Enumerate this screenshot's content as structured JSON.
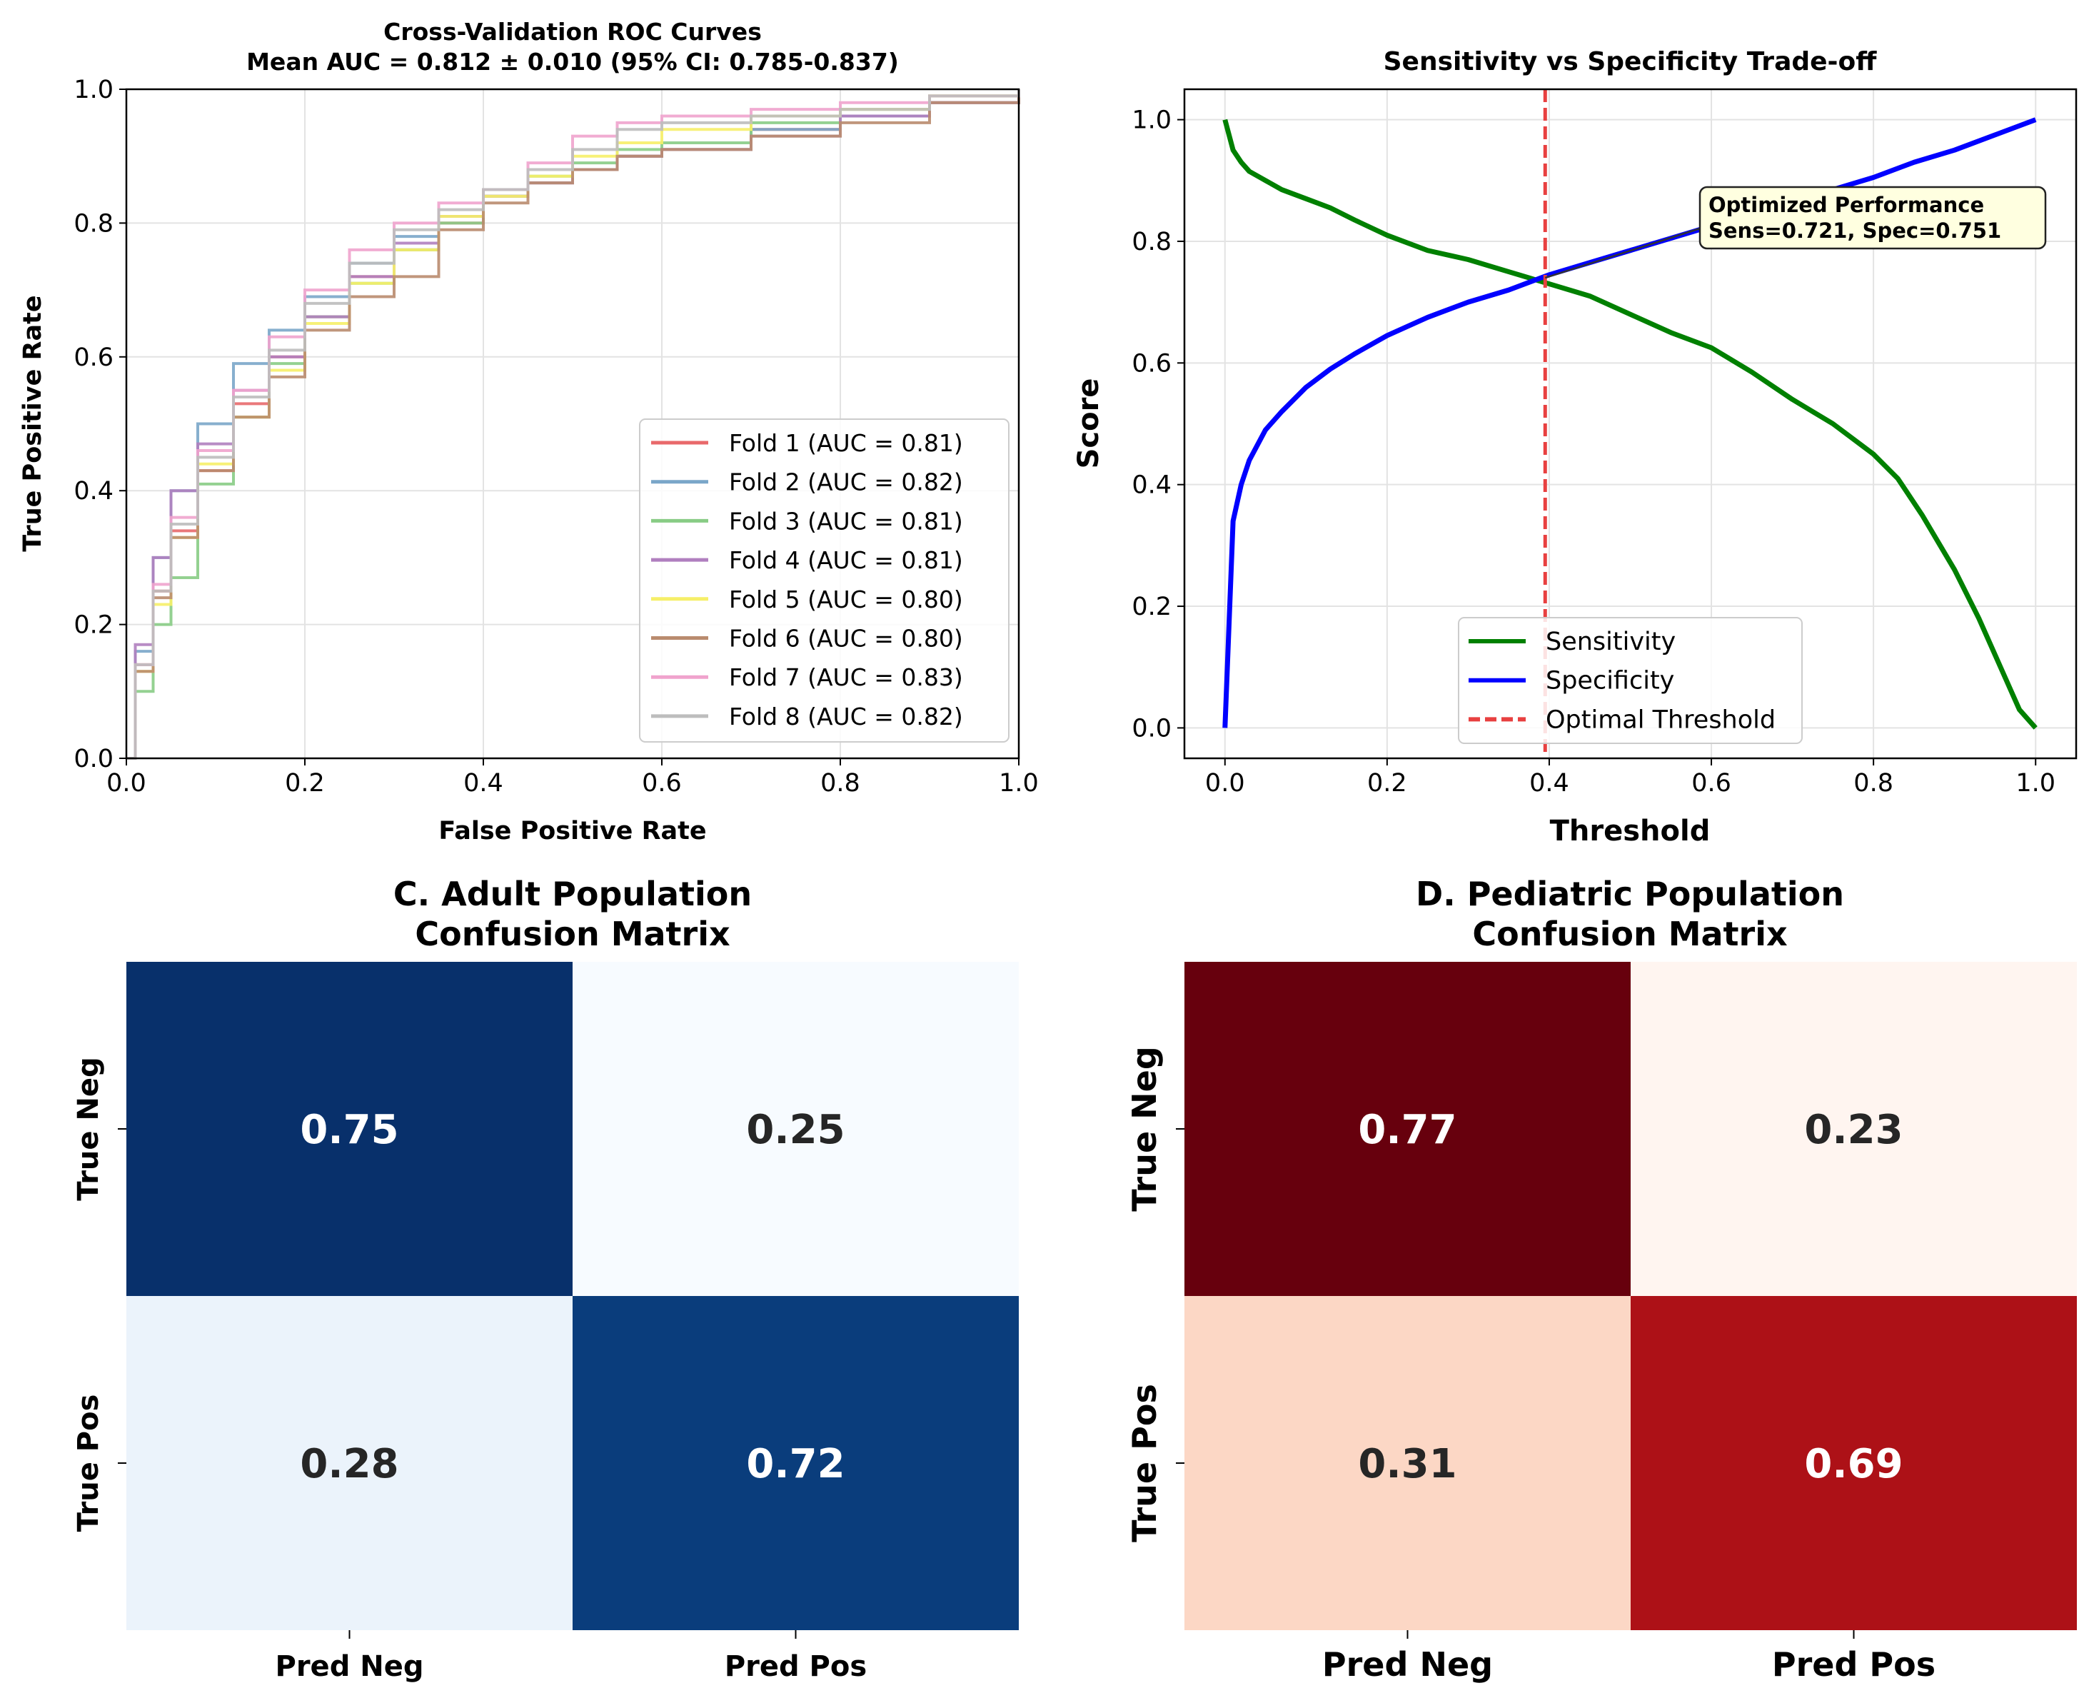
{
  "chart_data": [
    {
      "type": "line",
      "panel": "roc",
      "title_line1": "Cross-Validation ROC Curves",
      "title_line2": "Mean AUC = 0.812 ± 0.010 (95% CI: 0.785-0.837)",
      "xlabel": "False Positive Rate",
      "ylabel": "True Positive Rate",
      "xlim": [
        0,
        1
      ],
      "ylim": [
        0,
        1
      ],
      "xticks": [
        "0.0",
        "0.2",
        "0.4",
        "0.6",
        "0.8",
        "1.0"
      ],
      "yticks": [
        "0.0",
        "0.2",
        "0.4",
        "0.6",
        "0.8",
        "1.0"
      ],
      "grid": true,
      "legend_position": "lower-right",
      "series": [
        {
          "name": "Fold 1 (AUC = 0.81)",
          "color": "#e8696b",
          "x": [
            0,
            0.01,
            0.03,
            0.05,
            0.08,
            0.12,
            0.16,
            0.2,
            0.25,
            0.3,
            0.35,
            0.4,
            0.45,
            0.5,
            0.55,
            0.6,
            0.7,
            0.8,
            0.9,
            1.0
          ],
          "y": [
            0,
            0.14,
            0.25,
            0.34,
            0.43,
            0.53,
            0.6,
            0.66,
            0.72,
            0.76,
            0.8,
            0.84,
            0.86,
            0.88,
            0.9,
            0.91,
            0.94,
            0.96,
            0.98,
            1.0
          ]
        },
        {
          "name": "Fold 2 (AUC = 0.82)",
          "color": "#7aa6c9",
          "x": [
            0,
            0.01,
            0.03,
            0.05,
            0.08,
            0.12,
            0.16,
            0.2,
            0.25,
            0.3,
            0.35,
            0.4,
            0.45,
            0.5,
            0.55,
            0.6,
            0.7,
            0.8,
            0.9,
            1.0
          ],
          "y": [
            0,
            0.16,
            0.3,
            0.4,
            0.5,
            0.59,
            0.64,
            0.69,
            0.74,
            0.78,
            0.81,
            0.84,
            0.86,
            0.88,
            0.9,
            0.91,
            0.94,
            0.96,
            0.98,
            1.0
          ]
        },
        {
          "name": "Fold 3 (AUC = 0.81)",
          "color": "#88cc85",
          "x": [
            0,
            0.01,
            0.03,
            0.05,
            0.08,
            0.12,
            0.16,
            0.2,
            0.25,
            0.3,
            0.35,
            0.4,
            0.45,
            0.5,
            0.55,
            0.6,
            0.7,
            0.8,
            0.9,
            1.0
          ],
          "y": [
            0,
            0.1,
            0.2,
            0.27,
            0.41,
            0.51,
            0.59,
            0.66,
            0.71,
            0.76,
            0.8,
            0.84,
            0.87,
            0.89,
            0.91,
            0.92,
            0.95,
            0.97,
            0.99,
            1.0
          ]
        },
        {
          "name": "Fold 4 (AUC = 0.81)",
          "color": "#b07fbf",
          "x": [
            0,
            0.01,
            0.03,
            0.05,
            0.08,
            0.12,
            0.16,
            0.2,
            0.25,
            0.3,
            0.35,
            0.4,
            0.45,
            0.5,
            0.55,
            0.6,
            0.7,
            0.8,
            0.9,
            1.0
          ],
          "y": [
            0,
            0.17,
            0.3,
            0.4,
            0.47,
            0.55,
            0.6,
            0.66,
            0.72,
            0.77,
            0.81,
            0.84,
            0.86,
            0.88,
            0.9,
            0.91,
            0.93,
            0.96,
            0.98,
            1.0
          ]
        },
        {
          "name": "Fold 5 (AUC = 0.80)",
          "color": "#f6ef68",
          "x": [
            0,
            0.01,
            0.03,
            0.05,
            0.08,
            0.12,
            0.16,
            0.2,
            0.25,
            0.3,
            0.35,
            0.4,
            0.45,
            0.5,
            0.55,
            0.6,
            0.7,
            0.8,
            0.9,
            1.0
          ],
          "y": [
            0,
            0.13,
            0.23,
            0.33,
            0.44,
            0.51,
            0.58,
            0.65,
            0.71,
            0.76,
            0.81,
            0.84,
            0.87,
            0.9,
            0.92,
            0.94,
            0.96,
            0.97,
            0.99,
            1.0
          ]
        },
        {
          "name": "Fold 6 (AUC = 0.80)",
          "color": "#b98b6e",
          "x": [
            0,
            0.01,
            0.03,
            0.05,
            0.08,
            0.12,
            0.16,
            0.2,
            0.25,
            0.3,
            0.35,
            0.4,
            0.45,
            0.5,
            0.55,
            0.6,
            0.7,
            0.8,
            0.9,
            1.0
          ],
          "y": [
            0,
            0.13,
            0.24,
            0.33,
            0.43,
            0.51,
            0.57,
            0.64,
            0.69,
            0.72,
            0.79,
            0.83,
            0.86,
            0.88,
            0.9,
            0.91,
            0.93,
            0.95,
            0.98,
            1.0
          ]
        },
        {
          "name": "Fold 7 (AUC = 0.83)",
          "color": "#f0a3cd",
          "x": [
            0,
            0.01,
            0.03,
            0.05,
            0.08,
            0.12,
            0.16,
            0.2,
            0.25,
            0.3,
            0.35,
            0.4,
            0.45,
            0.5,
            0.55,
            0.6,
            0.7,
            0.8,
            0.9,
            1.0
          ],
          "y": [
            0,
            0.14,
            0.26,
            0.36,
            0.46,
            0.55,
            0.63,
            0.7,
            0.76,
            0.8,
            0.83,
            0.85,
            0.89,
            0.93,
            0.95,
            0.96,
            0.97,
            0.98,
            0.99,
            1.0
          ]
        },
        {
          "name": "Fold 8 (AUC = 0.82)",
          "color": "#bdbdbd",
          "x": [
            0,
            0.01,
            0.03,
            0.05,
            0.08,
            0.12,
            0.16,
            0.2,
            0.25,
            0.3,
            0.35,
            0.4,
            0.45,
            0.5,
            0.55,
            0.6,
            0.7,
            0.8,
            0.9,
            1.0
          ],
          "y": [
            0,
            0.14,
            0.25,
            0.35,
            0.45,
            0.54,
            0.61,
            0.68,
            0.74,
            0.79,
            0.82,
            0.85,
            0.88,
            0.91,
            0.94,
            0.95,
            0.96,
            0.97,
            0.99,
            1.0
          ]
        }
      ]
    },
    {
      "type": "line",
      "panel": "tradeoff",
      "title": "Sensitivity vs Specificity Trade-off",
      "xlabel": "Threshold",
      "ylabel": "Score",
      "xlim": [
        -0.05,
        1.05
      ],
      "ylim": [
        -0.05,
        1.05
      ],
      "xticks": [
        "0.0",
        "0.2",
        "0.4",
        "0.6",
        "0.8",
        "1.0"
      ],
      "yticks": [
        "0.0",
        "0.2",
        "0.4",
        "0.6",
        "0.8",
        "1.0"
      ],
      "grid": true,
      "legend_position": "lower-center",
      "optimal_threshold": 0.395,
      "annotation": {
        "line1": "Optimized Performance",
        "line2": "Sens=0.721, Spec=0.751",
        "point": [
          0.395,
          0.74
        ]
      },
      "series": [
        {
          "name": "Sensitivity",
          "color": "#008000",
          "x": [
            0,
            0.01,
            0.02,
            0.03,
            0.05,
            0.07,
            0.1,
            0.13,
            0.16,
            0.2,
            0.25,
            0.3,
            0.35,
            0.4,
            0.45,
            0.5,
            0.55,
            0.6,
            0.65,
            0.7,
            0.75,
            0.8,
            0.83,
            0.86,
            0.9,
            0.93,
            0.96,
            0.98,
            1.0
          ],
          "y": [
            1.0,
            0.95,
            0.93,
            0.915,
            0.9,
            0.885,
            0.87,
            0.855,
            0.835,
            0.81,
            0.785,
            0.77,
            0.75,
            0.73,
            0.71,
            0.68,
            0.65,
            0.625,
            0.585,
            0.54,
            0.5,
            0.45,
            0.41,
            0.35,
            0.26,
            0.18,
            0.09,
            0.03,
            0.0
          ]
        },
        {
          "name": "Specificity",
          "color": "#0000ff",
          "x": [
            0,
            0.01,
            0.02,
            0.03,
            0.05,
            0.07,
            0.1,
            0.13,
            0.16,
            0.2,
            0.25,
            0.3,
            0.35,
            0.4,
            0.45,
            0.5,
            0.55,
            0.6,
            0.65,
            0.7,
            0.75,
            0.8,
            0.85,
            0.9,
            0.95,
            1.0
          ],
          "y": [
            0.0,
            0.34,
            0.4,
            0.44,
            0.49,
            0.52,
            0.56,
            0.59,
            0.615,
            0.645,
            0.675,
            0.7,
            0.72,
            0.745,
            0.765,
            0.785,
            0.805,
            0.825,
            0.845,
            0.865,
            0.885,
            0.905,
            0.93,
            0.95,
            0.975,
            1.0
          ]
        },
        {
          "name": "Optimal Threshold",
          "color": "#e84040",
          "dashed": true
        }
      ]
    },
    {
      "type": "heatmap",
      "panel": "adult",
      "title_line1": "C. Adult Population",
      "title_line2": "Confusion Matrix",
      "row_labels": [
        "True Neg",
        "True Pos"
      ],
      "col_labels": [
        "Pred Neg",
        "Pred Pos"
      ],
      "values": [
        [
          "0.75",
          "0.25"
        ],
        [
          "0.28",
          "0.72"
        ]
      ],
      "cell_colors": [
        [
          "#08306b",
          "#f7fbff"
        ],
        [
          "#ebf3fb",
          "#0a3d7c"
        ]
      ],
      "text_colors": [
        [
          "#ffffff",
          "#262626"
        ],
        [
          "#262626",
          "#ffffff"
        ]
      ]
    },
    {
      "type": "heatmap",
      "panel": "pediatric",
      "title_line1": "D. Pediatric Population",
      "title_line2": "Confusion Matrix",
      "row_labels": [
        "True Neg",
        "True Pos"
      ],
      "col_labels": [
        "Pred Neg",
        "Pred Pos"
      ],
      "values": [
        [
          "0.77",
          "0.23"
        ],
        [
          "0.31",
          "0.69"
        ]
      ],
      "cell_colors": [
        [
          "#67000d",
          "#fff5f0"
        ],
        [
          "#fcd7c5",
          "#ad1117"
        ]
      ],
      "text_colors": [
        [
          "#ffffff",
          "#262626"
        ],
        [
          "#262626",
          "#ffffff"
        ]
      ]
    }
  ]
}
